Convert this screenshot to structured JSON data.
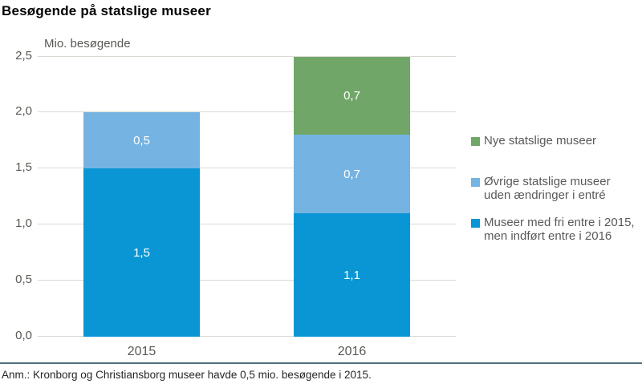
{
  "title": "Besøgende på statslige museer",
  "axis_title": "Mio. besøgende",
  "footnote": "Anm.: Kronborg og Christiansborg museer havde 0,5 mio. besøgende i 2015.",
  "colors": {
    "dark_blue": "#0a96d4",
    "light_blue": "#74b3e2",
    "green": "#70a768",
    "gridline": "#d9d9d2",
    "axis_text": "#5a5953",
    "legend_text": "#58595b",
    "footnote_rule": "#4e6f7d"
  },
  "chart_data": {
    "type": "bar",
    "stacked": true,
    "title": "Besøgende på statslige museer",
    "axis_title": "Mio. besøgende",
    "categories": [
      "2015",
      "2016"
    ],
    "series": [
      {
        "name": "Museer med fri entre i 2015, men indført entre i 2016",
        "color": "#0a96d4",
        "values": [
          1.5,
          1.1
        ],
        "labels": [
          "1,5",
          "1,1"
        ]
      },
      {
        "name": "Øvrige statslige museer uden ændringer i entré",
        "color": "#74b3e2",
        "values": [
          0.5,
          0.7
        ],
        "labels": [
          "0,5",
          "0,7"
        ]
      },
      {
        "name": "Nye statslige museer",
        "color": "#70a768",
        "values": [
          0,
          0.7
        ],
        "labels": [
          "",
          "0,7"
        ]
      }
    ],
    "ylim": [
      0,
      2.5
    ],
    "yticks": [
      "0,0",
      "0,5",
      "1,0",
      "1,5",
      "2,0",
      "2,5"
    ],
    "grid": true,
    "legend_position": "right"
  },
  "legend": {
    "items": [
      {
        "color": "#70a768",
        "lines": [
          "Nye statslige museer"
        ]
      },
      {
        "color": "#74b3e2",
        "lines": [
          "Øvrige statslige museer",
          "uden ændringer i entré"
        ]
      },
      {
        "color": "#0a96d4",
        "lines": [
          "Museer med fri entre i 2015,",
          "men indført entre i 2016"
        ]
      }
    ]
  }
}
